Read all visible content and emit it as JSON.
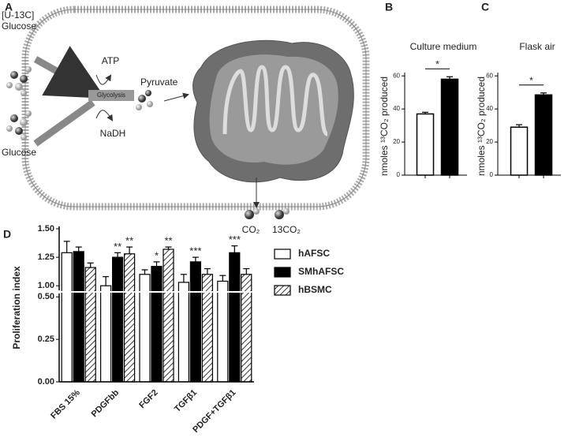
{
  "panel_labels": [
    "A",
    "B",
    "C",
    "D"
  ],
  "diagram": {
    "labeled_glucose": [
      "[U-13C]",
      "Glucose"
    ],
    "glucose": "Glucose",
    "atp": "ATP",
    "glycolysis": "Glycolysis",
    "nadh": "NaDH",
    "pyruvate": "Pyruvate",
    "co2": "CO₂",
    "labeled_co2": "13CO₂"
  },
  "chart_data": [
    {
      "type": "bar",
      "title": "Culture medium",
      "ylabel": "nmoles ¹³CO₂ produced",
      "categories": [
        null,
        null
      ],
      "values": [
        37,
        58
      ],
      "errors": [
        1,
        1.5
      ],
      "colors": [
        "#ffffff",
        "#000000"
      ],
      "ylim": [
        0,
        62
      ],
      "yticks": [
        0,
        20,
        40,
        60
      ],
      "significance": "*"
    },
    {
      "type": "bar",
      "title": "Flask air",
      "ylabel": "nmoles ¹³CO₂ produced",
      "categories": [
        null,
        null
      ],
      "values": [
        29,
        48.5
      ],
      "errors": [
        1.5,
        1.2
      ],
      "colors": [
        "#ffffff",
        "#000000"
      ],
      "ylim": [
        0,
        62
      ],
      "yticks": [
        0,
        20,
        40,
        60
      ],
      "significance": "*"
    },
    {
      "type": "grouped-bar",
      "ylabel": "Proliferation index",
      "categories": [
        "FBS 15%",
        "PDGFbb",
        "FGF2",
        "TGFβ1",
        "PDGF+TGFβ1"
      ],
      "series": [
        {
          "name": "hAFSC",
          "color": "#ffffff",
          "hatch": false,
          "values": [
            1.29,
            1.0,
            1.1,
            1.03,
            1.04
          ],
          "errors": [
            0.1,
            0.08,
            0.04,
            0.07,
            0.05
          ],
          "labels": [
            null,
            null,
            null,
            null,
            null
          ]
        },
        {
          "name": "SMhAFSC",
          "color": "#000000",
          "hatch": false,
          "values": [
            1.3,
            1.25,
            1.17,
            1.21,
            1.29
          ],
          "errors": [
            0.04,
            0.04,
            0.04,
            0.04,
            0.06
          ],
          "labels": [
            null,
            "**",
            "*",
            "***",
            "***"
          ]
        },
        {
          "name": "hBSMC",
          "color": "#ffffff",
          "hatch": true,
          "values": [
            1.16,
            1.28,
            1.32,
            1.1,
            1.1
          ],
          "errors": [
            0.04,
            0.06,
            0.02,
            0.05,
            0.05
          ],
          "labels": [
            null,
            "**",
            "**",
            null,
            null
          ]
        }
      ],
      "ylim": [
        0,
        1.5
      ],
      "ybreak": [
        0.52,
        0.96
      ],
      "yticks": [
        {
          "value": 0,
          "label": "0.00"
        },
        {
          "value": 0.25,
          "label": "0.25"
        },
        {
          "value": 0.5,
          "label": "0.50"
        },
        {
          "value": 1,
          "label": "1.00"
        },
        {
          "value": 1.25,
          "label": "1.25"
        },
        {
          "value": 1.5,
          "label": "1.50"
        }
      ]
    }
  ]
}
